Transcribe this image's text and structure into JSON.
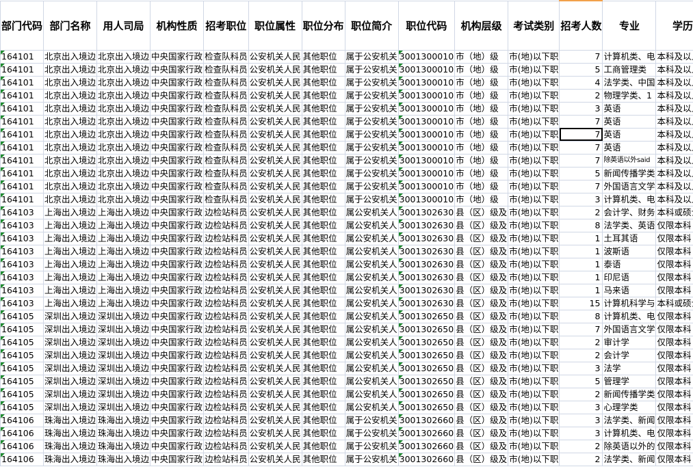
{
  "headers": [
    "部门代码",
    "部门名称",
    "用人司局",
    "机构性质",
    "招考职位",
    "职位属性",
    "职位分布",
    "职位简介",
    "职位代码",
    "机构层级",
    "考试类别",
    "招考人数",
    "专业",
    "学历"
  ],
  "selected_cell": {
    "row": 7,
    "column": "招考人数"
  },
  "colors": {
    "gridline": "#d0d7e5",
    "text_marker": "#1e8a2e",
    "selection": "#000000"
  },
  "rows": [
    [
      "164101",
      "北京出入境边",
      "北京出入境边",
      "中央国家行政",
      "检查队科员",
      "公安机关人民",
      "其他职位",
      "属于公安机关",
      "3001300010",
      "市（地）级",
      "市(地)以下职",
      "7",
      "计算机类、电",
      "本科及以上"
    ],
    [
      "164101",
      "北京出入境边",
      "北京出入境边",
      "中央国家行政",
      "检查队科员",
      "公安机关人民",
      "其他职位",
      "属于公安机关",
      "3001300010",
      "市（地）级",
      "市(地)以下职",
      "5",
      "工商管理类",
      "本科及以上"
    ],
    [
      "164101",
      "北京出入境边",
      "北京出入境边",
      "中央国家行政",
      "检查队科员",
      "公安机关人民",
      "其他职位",
      "属于公安机关",
      "3001300010",
      "市（地）级",
      "市(地)以下职",
      "4",
      "法学类、中国",
      "本科及以上"
    ],
    [
      "164101",
      "北京出入境边",
      "北京出入境边",
      "中央国家行政",
      "检查队科员",
      "公安机关人民",
      "其他职位",
      "属于公安机关",
      "3001300010",
      "市（地）级",
      "市(地)以下职",
      "2",
      "物理学类、1",
      "本科及以上"
    ],
    [
      "164101",
      "北京出入境边",
      "北京出入境边",
      "中央国家行政",
      "检查队科员",
      "公安机关人民",
      "其他职位",
      "属于公安机关",
      "3001300010",
      "市（地）级",
      "市(地)以下职",
      "3",
      "英语",
      "本科及以上"
    ],
    [
      "164101",
      "北京出入境边",
      "北京出入境边",
      "中央国家行政",
      "检查队科员",
      "公安机关人民",
      "其他职位",
      "属于公安机关",
      "3001300010",
      "市（地）级",
      "市(地)以下职",
      "7",
      "英语",
      "本科及以上"
    ],
    [
      "164101",
      "北京出入境边",
      "北京出入境边",
      "中央国家行政",
      "检查队科员",
      "公安机关人民",
      "其他职位",
      "属于公安机关",
      "3001300010",
      "市（地）级",
      "市(地)以下职",
      "7",
      "英语",
      "本科及以上"
    ],
    [
      "164101",
      "北京出入境边",
      "北京出入境边",
      "中央国家行政",
      "检查队科员",
      "公安机关人民",
      "其他职位",
      "属于公安机关",
      "3001300010",
      "市（地）级",
      "市(地)以下职",
      "7",
      "英语",
      "本科及以上"
    ],
    [
      "164101",
      "北京出入境边",
      "北京出入境边",
      "中央国家行政",
      "检查队科员",
      "公安机关人民",
      "其他职位",
      "属于公安机关",
      "3001300010",
      "市（地）级",
      "市(地)以下职",
      "7",
      "除英语以外said",
      "本科及以上"
    ],
    [
      "164101",
      "北京出入境边",
      "北京出入境边",
      "中央国家行政",
      "检查队科员",
      "公安机关人民",
      "其他职位",
      "属于公安机关",
      "3001300010",
      "市（地）级",
      "市(地)以下职",
      "5",
      "新闻传播学类",
      "本科及以上"
    ],
    [
      "164101",
      "北京出入境边",
      "北京出入境边",
      "中央国家行政",
      "检查队科员",
      "公安机关人民",
      "其他职位",
      "属于公安机关",
      "3001300010",
      "市（地）级",
      "市(地)以下职",
      "7",
      "外国语言文学",
      "本科及以上"
    ],
    [
      "164101",
      "北京出入境边",
      "北京出入境边",
      "中央国家行政",
      "检查队科员",
      "公安机关人民",
      "其他职位",
      "属于公安机关",
      "3001300010",
      "市（地）级",
      "市(地)以下职",
      "3",
      "计算机类、电",
      "本科及以上"
    ],
    [
      "164103",
      "上海出入境边",
      "上海出入境边",
      "中央国家行政",
      "边检站科员",
      "公安机关人民",
      "其他职位",
      "属公安机关人",
      "3001302630",
      "县（区）级及",
      "市(地)以下职",
      "2",
      "会计学、财务",
      "本科或硕士研"
    ],
    [
      "164103",
      "上海出入境边",
      "上海出入境边",
      "中央国家行政",
      "边检站科员",
      "公安机关人民",
      "其他职位",
      "属公安机关人",
      "3001302630",
      "县（区）级及",
      "市(地)以下职",
      "8",
      "法学类、英语",
      "仅限本科"
    ],
    [
      "164103",
      "上海出入境边",
      "上海出入境边",
      "中央国家行政",
      "边检站科员",
      "公安机关人民",
      "其他职位",
      "属公安机关人",
      "3001302630",
      "县（区）级及",
      "市(地)以下职",
      "1",
      "土耳其语",
      "仅限本科"
    ],
    [
      "164103",
      "上海出入境边",
      "上海出入境边",
      "中央国家行政",
      "边检站科员",
      "公安机关人民",
      "其他职位",
      "属公安机关人",
      "3001302630",
      "县（区）级及",
      "市(地)以下职",
      "1",
      "波斯语",
      "仅限本科"
    ],
    [
      "164103",
      "上海出入境边",
      "上海出入境边",
      "中央国家行政",
      "边检站科员",
      "公安机关人民",
      "其他职位",
      "属公安机关人",
      "3001302630",
      "县（区）级及",
      "市(地)以下职",
      "1",
      "泰语",
      "仅限本科"
    ],
    [
      "164103",
      "上海出入境边",
      "上海出入境边",
      "中央国家行政",
      "边检站科员",
      "公安机关人民",
      "其他职位",
      "属公安机关人",
      "3001302630",
      "县（区）级及",
      "市(地)以下职",
      "1",
      "印尼语",
      "仅限本科"
    ],
    [
      "164103",
      "上海出入境边",
      "上海出入境边",
      "中央国家行政",
      "边检站科员",
      "公安机关人民",
      "其他职位",
      "属公安机关人",
      "3001302630",
      "县（区）级及",
      "市(地)以下职",
      "1",
      "马来语",
      "仅限本科"
    ],
    [
      "164103",
      "上海出入境边",
      "上海出入境边",
      "中央国家行政",
      "边检站科员",
      "公安机关人民",
      "其他职位",
      "属公安机关人",
      "3001302630",
      "县（区）级及",
      "市(地)以下职",
      "15",
      "计算机科学与",
      "本科或硕士研"
    ],
    [
      "164105",
      "深圳出入境边",
      "深圳出入境边",
      "中央国家行政",
      "边检站科员",
      "公安机关人民",
      "其他职位",
      "属公安机关人",
      "3001302650",
      "县（区）级及",
      "市(地)以下职",
      "8",
      "计算机类、电",
      "仅限本科"
    ],
    [
      "164105",
      "深圳出入境边",
      "深圳出入境边",
      "中央国家行政",
      "边检站科员",
      "公安机关人民",
      "其他职位",
      "属公安机关人",
      "3001302650",
      "县（区）级及",
      "市(地)以下职",
      "7",
      "外国语言文学",
      "仅限本科"
    ],
    [
      "164105",
      "深圳出入境边",
      "深圳出入境边",
      "中央国家行政",
      "边检站科员",
      "公安机关人民",
      "其他职位",
      "属公安机关人",
      "3001302650",
      "县（区）级及",
      "市(地)以下职",
      "2",
      "审计学",
      "仅限本科"
    ],
    [
      "164105",
      "深圳出入境边",
      "深圳出入境边",
      "中央国家行政",
      "边检站科员",
      "公安机关人民",
      "其他职位",
      "属公安机关人",
      "3001302650",
      "县（区）级及",
      "市(地)以下职",
      "2",
      "会计学",
      "仅限本科"
    ],
    [
      "164105",
      "深圳出入境边",
      "深圳出入境边",
      "中央国家行政",
      "边检站科员",
      "公安机关人民",
      "其他职位",
      "属公安机关人",
      "3001302650",
      "县（区）级及",
      "市(地)以下职",
      "3",
      "法学",
      "仅限本科"
    ],
    [
      "164105",
      "深圳出入境边",
      "深圳出入境边",
      "中央国家行政",
      "边检站科员",
      "公安机关人民",
      "其他职位",
      "属公安机关人",
      "3001302650",
      "县（区）级及",
      "市(地)以下职",
      "5",
      "管理学",
      "仅限本科"
    ],
    [
      "164105",
      "深圳出入境边",
      "深圳出入境边",
      "中央国家行政",
      "边检站科员",
      "公安机关人民",
      "其他职位",
      "属公安机关人",
      "3001302650",
      "县（区）级及",
      "市(地)以下职",
      "2",
      "新闻传播学类",
      "仅限本科"
    ],
    [
      "164105",
      "深圳出入境边",
      "深圳出入境边",
      "中央国家行政",
      "边检站科员",
      "公安机关人民",
      "其他职位",
      "属公安机关人",
      "3001302650",
      "县（区）级及",
      "市(地)以下职",
      "3",
      "心理学类",
      "仅限本科"
    ],
    [
      "164106",
      "珠海出入境边",
      "珠海出入境边",
      "中央国家行政",
      "边检站科员",
      "公安机关人民",
      "其他职位",
      "属于公安机关",
      "3001302660",
      "县（区）级及",
      "市(地)以下职",
      "3",
      "法学类、新闻",
      "仅限本科"
    ],
    [
      "164106",
      "珠海出入境边",
      "珠海出入境边",
      "中央国家行政",
      "边检站科员",
      "公安机关人民",
      "其他职位",
      "属于公安机关",
      "3001302660",
      "县（区）级及",
      "市(地)以下职",
      "3",
      "计算机类、电",
      "仅限本科"
    ],
    [
      "164106",
      "珠海出入境边",
      "珠海出入境边",
      "中央国家行政",
      "边检站科员",
      "公安机关人民",
      "其他职位",
      "属于公安机关",
      "3001302660",
      "县（区）级及",
      "市(地)以下职",
      "2",
      "除英语以外的",
      "仅限本科"
    ],
    [
      "164106",
      "珠海出入境边",
      "珠海出入境边",
      "中央国家行政",
      "边检站科员",
      "公安机关人民",
      "其他职位",
      "属于公安机关",
      "3001302660",
      "县（区）级及",
      "市(地)以下职",
      "2",
      "法学类、新闻",
      "仅限本科"
    ]
  ]
}
